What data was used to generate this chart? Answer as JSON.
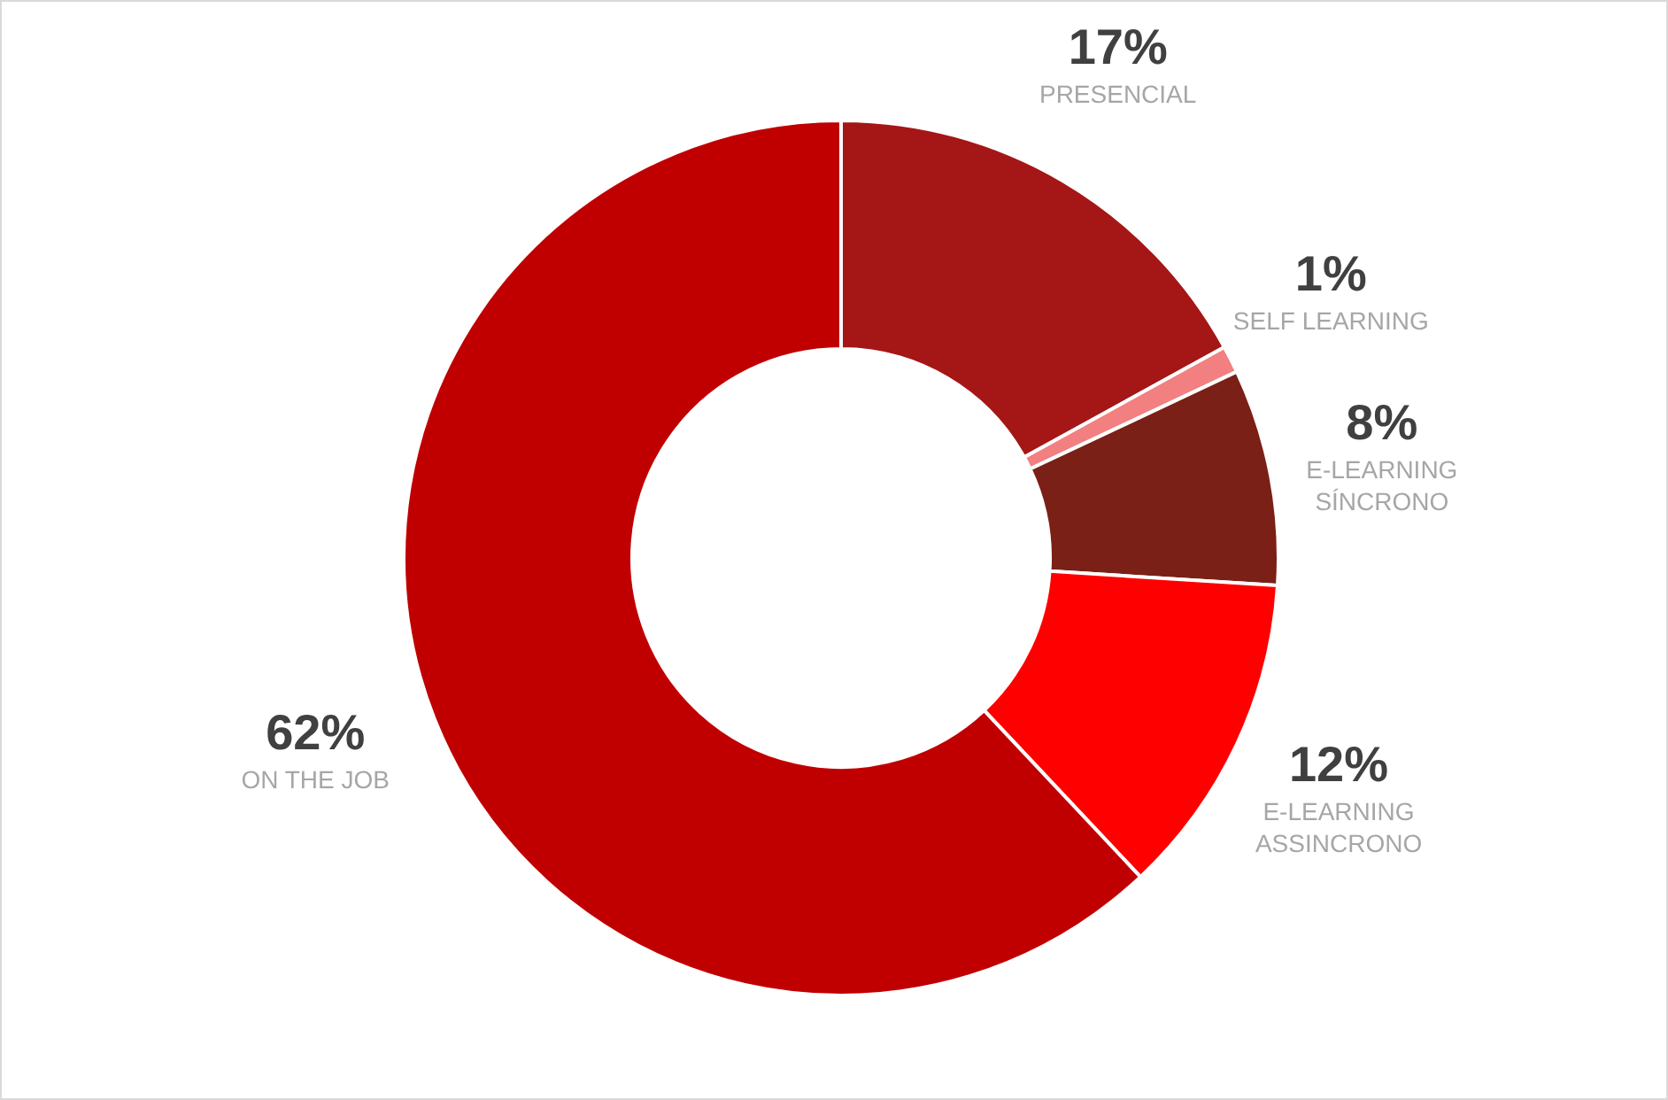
{
  "chart_data": {
    "type": "donut",
    "categories": [
      "PRESENCIAL",
      "SELF LEARNING",
      "E-LEARNING SÍNCRONO",
      "E-LEARNING ASSINCRONO",
      "ON THE JOB"
    ],
    "values": [
      17,
      1,
      8,
      12,
      62
    ],
    "colors": [
      "#a51616",
      "#f28080",
      "#7a2016",
      "#ff0000",
      "#c00000"
    ],
    "value_labels": [
      "17%",
      "1%",
      "8%",
      "12%",
      "62%"
    ],
    "legend": false
  }
}
